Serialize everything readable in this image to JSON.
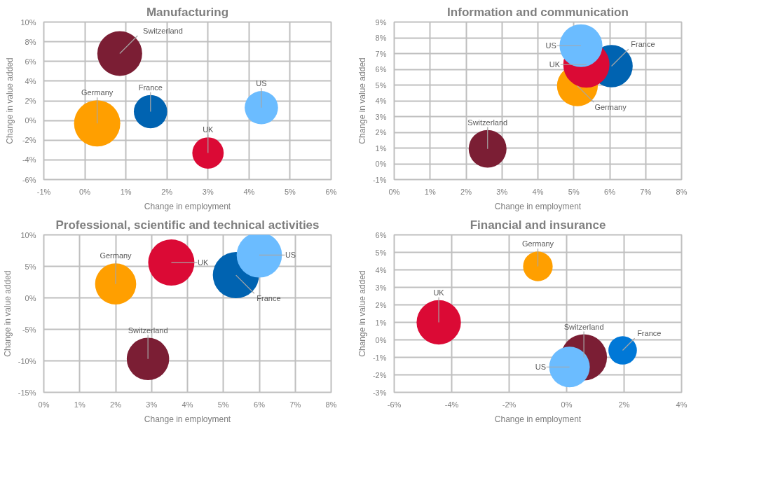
{
  "chart_data": [
    {
      "type": "bubble",
      "title": "Manufacturing",
      "xlabel": "Change in employment",
      "ylabel": "Change in value added",
      "grid": true,
      "xlim": [
        -1,
        6
      ],
      "xticks": [
        {
          "value": -1,
          "label": "-1%"
        },
        {
          "value": 0,
          "label": "0%"
        },
        {
          "value": 1,
          "label": "1%"
        },
        {
          "value": 2,
          "label": "2%"
        },
        {
          "value": 3,
          "label": "3%"
        },
        {
          "value": 4,
          "label": "4%"
        },
        {
          "value": 5,
          "label": "5%"
        },
        {
          "value": 6,
          "label": "6%"
        }
      ],
      "ylim": [
        -6,
        10
      ],
      "yticks": [
        {
          "value": -6,
          "label": "-6%"
        },
        {
          "value": -4,
          "label": "-4%"
        },
        {
          "value": -2,
          "label": "-2%"
        },
        {
          "value": 0,
          "label": "0%"
        },
        {
          "value": 2,
          "label": "2%"
        },
        {
          "value": 4,
          "label": "4%"
        },
        {
          "value": 6,
          "label": "6%"
        },
        {
          "value": 8,
          "label": "8%"
        },
        {
          "value": 10,
          "label": "10%"
        }
      ],
      "series": [
        {
          "name": "Switzerland",
          "color": "#7b1e34",
          "x": [
            0.85
          ],
          "values": [
            6.8
          ],
          "sizes": [
            0.94
          ]
        },
        {
          "name": "Germany",
          "color": "#ff9f00",
          "x": [
            0.3
          ],
          "values": [
            -0.3
          ],
          "sizes": [
            1
          ]
        },
        {
          "name": "France",
          "color": "#0063b1",
          "x": [
            1.6
          ],
          "values": [
            0.9
          ],
          "sizes": [
            0.52
          ]
        },
        {
          "name": "UK",
          "color": "#db0a35",
          "x": [
            3.0
          ],
          "values": [
            -3.3
          ],
          "sizes": [
            0.46
          ]
        },
        {
          "name": "US",
          "color": "#6bbcff",
          "x": [
            4.3
          ],
          "values": [
            1.3
          ],
          "sizes": [
            0.52
          ]
        }
      ]
    },
    {
      "type": "bubble",
      "title": "Information and communication",
      "xlabel": "Change in employment",
      "ylabel": "Change in value added",
      "grid": true,
      "xlim": [
        0,
        8
      ],
      "xticks": [
        {
          "value": 0,
          "label": "0%"
        },
        {
          "value": 1,
          "label": "1%"
        },
        {
          "value": 2,
          "label": "2%"
        },
        {
          "value": 3,
          "label": "3%"
        },
        {
          "value": 4,
          "label": "4%"
        },
        {
          "value": 5,
          "label": "5%"
        },
        {
          "value": 6,
          "label": "6%"
        },
        {
          "value": 7,
          "label": "7%"
        },
        {
          "value": 8,
          "label": "8%"
        }
      ],
      "ylim": [
        -1,
        9
      ],
      "yticks": [
        {
          "value": -1,
          "label": "-1%"
        },
        {
          "value": 0,
          "label": "0%"
        },
        {
          "value": 1,
          "label": "1%"
        },
        {
          "value": 2,
          "label": "2%"
        },
        {
          "value": 3,
          "label": "3%"
        },
        {
          "value": 4,
          "label": "4%"
        },
        {
          "value": 5,
          "label": "5%"
        },
        {
          "value": 6,
          "label": "6%"
        },
        {
          "value": 7,
          "label": "7%"
        },
        {
          "value": 8,
          "label": "8%"
        },
        {
          "value": 9,
          "label": "9%"
        }
      ],
      "series": [
        {
          "name": "Switzerland",
          "color": "#7b1e34",
          "x": [
            2.6
          ],
          "values": [
            0.95
          ],
          "sizes": [
            0.67
          ]
        },
        {
          "name": "Germany",
          "color": "#ff9f00",
          "x": [
            5.1
          ],
          "values": [
            4.95
          ],
          "sizes": [
            0.78
          ]
        },
        {
          "name": "France",
          "color": "#0063b1",
          "x": [
            6.05
          ],
          "values": [
            6.2
          ],
          "sizes": [
            0.84
          ]
        },
        {
          "name": "UK",
          "color": "#db0a35",
          "x": [
            5.35
          ],
          "values": [
            6.3
          ],
          "sizes": [
            1
          ]
        },
        {
          "name": "US",
          "color": "#6bbcff",
          "x": [
            5.2
          ],
          "values": [
            7.5
          ],
          "sizes": [
            0.86
          ]
        }
      ]
    },
    {
      "type": "bubble",
      "title": "Professional, scientific and technical activities",
      "xlabel": "Change in employment",
      "ylabel": "Change in value added",
      "grid": true,
      "xlim": [
        0,
        8
      ],
      "xticks": [
        {
          "value": 0,
          "label": "0%"
        },
        {
          "value": 1,
          "label": "1%"
        },
        {
          "value": 2,
          "label": "2%"
        },
        {
          "value": 3,
          "label": "3%"
        },
        {
          "value": 4,
          "label": "4%"
        },
        {
          "value": 5,
          "label": "5%"
        },
        {
          "value": 6,
          "label": "6%"
        },
        {
          "value": 7,
          "label": "7%"
        },
        {
          "value": 8,
          "label": "8%"
        }
      ],
      "ylim": [
        -15,
        10
      ],
      "yticks": [
        {
          "value": -15,
          "label": "-15%"
        },
        {
          "value": -10,
          "label": "-10%"
        },
        {
          "value": -5,
          "label": "-5%"
        },
        {
          "value": 0,
          "label": "0%"
        },
        {
          "value": 5,
          "label": "5%"
        },
        {
          "value": 10,
          "label": "10%"
        }
      ],
      "series": [
        {
          "name": "Switzerland",
          "color": "#7b1e34",
          "x": [
            2.9
          ],
          "values": [
            -9.7
          ],
          "sizes": [
            0.84
          ]
        },
        {
          "name": "Germany",
          "color": "#ff9f00",
          "x": [
            2.0
          ],
          "values": [
            2.2
          ],
          "sizes": [
            0.79
          ]
        },
        {
          "name": "France",
          "color": "#0063b1",
          "x": [
            5.35
          ],
          "values": [
            3.6
          ],
          "sizes": [
            1
          ]
        },
        {
          "name": "UK",
          "color": "#db0a35",
          "x": [
            3.55
          ],
          "values": [
            5.6
          ],
          "sizes": [
            1
          ]
        },
        {
          "name": "US",
          "color": "#6bbcff",
          "x": [
            6.0
          ],
          "values": [
            6.8
          ],
          "sizes": [
            0.96
          ]
        }
      ]
    },
    {
      "type": "bubble",
      "title": "Financial and insurance",
      "xlabel": "Change in employment",
      "ylabel": "Change in value added",
      "grid": true,
      "xlim": [
        -6,
        4
      ],
      "xticks": [
        {
          "value": -6,
          "label": "-6%"
        },
        {
          "value": -4,
          "label": "-4%"
        },
        {
          "value": -2,
          "label": "-2%"
        },
        {
          "value": 0,
          "label": "0%"
        },
        {
          "value": 2,
          "label": "2%"
        },
        {
          "value": 4,
          "label": "4%"
        }
      ],
      "ylim": [
        -3,
        6
      ],
      "yticks": [
        {
          "value": -3,
          "label": "-3%"
        },
        {
          "value": -2,
          "label": "-2%"
        },
        {
          "value": -1,
          "label": "-1%"
        },
        {
          "value": 0,
          "label": "0%"
        },
        {
          "value": 1,
          "label": "1%"
        },
        {
          "value": 2,
          "label": "2%"
        },
        {
          "value": 3,
          "label": "3%"
        },
        {
          "value": 4,
          "label": "4%"
        },
        {
          "value": 5,
          "label": "5%"
        },
        {
          "value": 6,
          "label": "6%"
        }
      ],
      "series": [
        {
          "name": "Switzerland",
          "color": "#7b1e34",
          "x": [
            0.6
          ],
          "values": [
            -1.0
          ],
          "sizes": [
            1
          ]
        },
        {
          "name": "Germany",
          "color": "#ff9f00",
          "x": [
            -1.0
          ],
          "values": [
            4.2
          ],
          "sizes": [
            0.41
          ]
        },
        {
          "name": "France",
          "color": "#0078d7",
          "x": [
            1.95
          ],
          "values": [
            -0.6
          ],
          "sizes": [
            0.38
          ]
        },
        {
          "name": "UK",
          "color": "#db0a35",
          "x": [
            -4.45
          ],
          "values": [
            1.0
          ],
          "sizes": [
            0.92
          ]
        },
        {
          "name": "US",
          "color": "#6bbcff",
          "x": [
            0.1
          ],
          "values": [
            -1.55
          ],
          "sizes": [
            0.77
          ]
        }
      ]
    }
  ]
}
